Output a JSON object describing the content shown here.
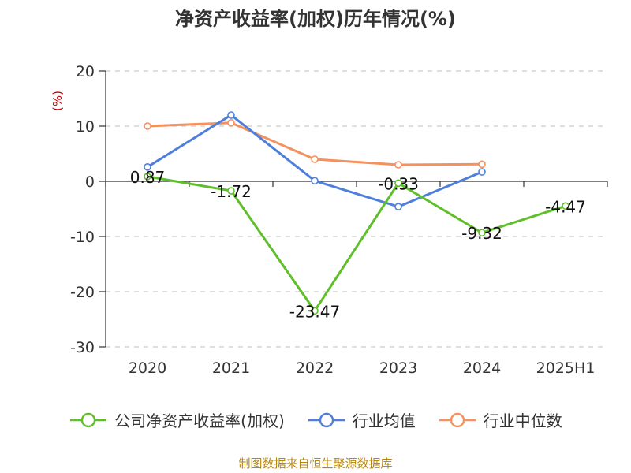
{
  "chart_data": {
    "type": "line",
    "title": "净资产收益率(加权)历年情况(%)",
    "ylabel": "(%)",
    "ylim": [
      -30,
      20
    ],
    "yticks": [
      20,
      10,
      0,
      -10,
      -20,
      -30
    ],
    "grid": true,
    "legend_position": "bottom",
    "categories": [
      "2020",
      "2021",
      "2022",
      "2023",
      "2024",
      "2025H1"
    ],
    "series": [
      {
        "name": "公司净资产收益率(加权)",
        "color": "#5fbf2a",
        "values": [
          0.87,
          -1.72,
          -23.47,
          -0.33,
          -9.32,
          -4.47
        ],
        "labels": [
          "0.87",
          "-1.72",
          "-23.47",
          "-0.33",
          "-9.32",
          "-4.47"
        ]
      },
      {
        "name": "行业均值",
        "color": "#4f7fdc",
        "values": [
          2.6,
          12.0,
          0.1,
          -4.6,
          1.7,
          null
        ]
      },
      {
        "name": "行业中位数",
        "color": "#f4915e",
        "values": [
          10.0,
          10.6,
          4.0,
          3.0,
          3.1,
          null
        ]
      }
    ]
  },
  "source_text": "制图数据来自恒生聚源数据库"
}
